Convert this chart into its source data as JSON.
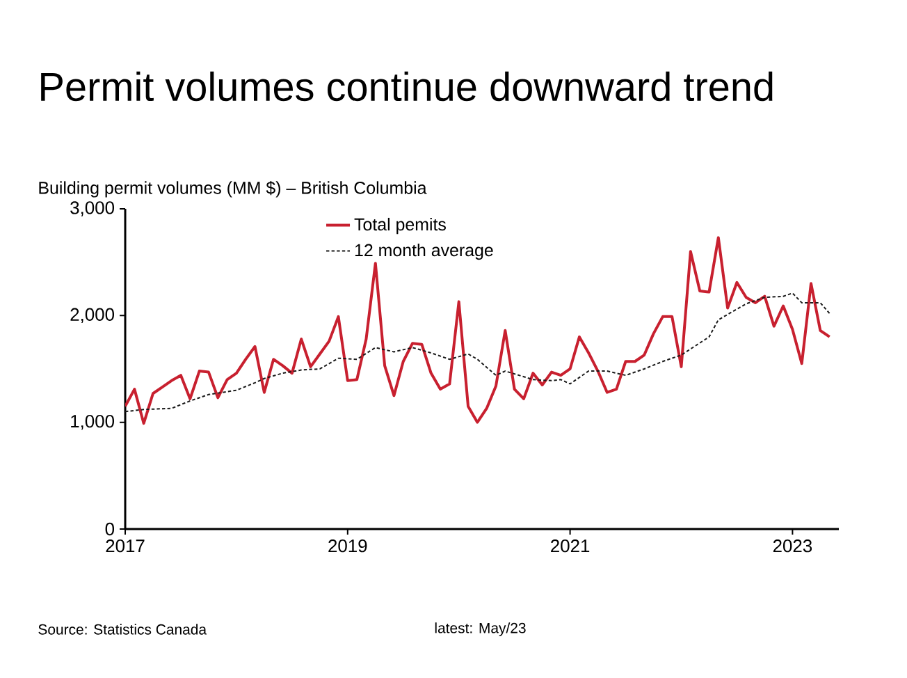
{
  "chart_data": {
    "type": "line",
    "title": "Permit volumes continue downward trend",
    "ylabel": "Building permit volumes (MM $) – British Columbia",
    "annotations": [
      "Source: Statistics Canada",
      "latest: May/23"
    ],
    "x": [
      "2017-01",
      "2017-02",
      "2017-03",
      "2017-04",
      "2017-05",
      "2017-06",
      "2017-07",
      "2017-08",
      "2017-09",
      "2017-10",
      "2017-11",
      "2017-12",
      "2018-01",
      "2018-02",
      "2018-03",
      "2018-04",
      "2018-05",
      "2018-06",
      "2018-07",
      "2018-08",
      "2018-09",
      "2018-10",
      "2018-11",
      "2018-12",
      "2019-01",
      "2019-02",
      "2019-03",
      "2019-04",
      "2019-05",
      "2019-06",
      "2019-07",
      "2019-08",
      "2019-09",
      "2019-10",
      "2019-11",
      "2019-12",
      "2020-01",
      "2020-02",
      "2020-03",
      "2020-04",
      "2020-05",
      "2020-06",
      "2020-07",
      "2020-08",
      "2020-09",
      "2020-10",
      "2020-11",
      "2020-12",
      "2021-01",
      "2021-02",
      "2021-03",
      "2021-04",
      "2021-05",
      "2021-06",
      "2021-07",
      "2021-08",
      "2021-09",
      "2021-10",
      "2021-11",
      "2021-12",
      "2022-01",
      "2022-02",
      "2022-03",
      "2022-04",
      "2022-05",
      "2022-06",
      "2022-07",
      "2022-08",
      "2022-09",
      "2022-10",
      "2022-11",
      "2022-12",
      "2023-01",
      "2023-02",
      "2023-03",
      "2023-04",
      "2023-05"
    ],
    "series": [
      {
        "name": "Total pemits",
        "color": "#c8202f",
        "line_style": "solid",
        "values": [
          1150,
          1310,
          990,
          1270,
          1330,
          1390,
          1440,
          1220,
          1480,
          1470,
          1230,
          1400,
          1460,
          1590,
          1710,
          1280,
          1590,
          1530,
          1460,
          1780,
          1520,
          1640,
          1760,
          1990,
          1390,
          1400,
          1780,
          2490,
          1530,
          1250,
          1570,
          1740,
          1730,
          1460,
          1310,
          1360,
          2130,
          1150,
          1000,
          1130,
          1340,
          1860,
          1310,
          1220,
          1460,
          1350,
          1470,
          1440,
          1500,
          1800,
          1650,
          1480,
          1280,
          1310,
          1570,
          1570,
          1630,
          1830,
          1990,
          1990,
          1520,
          2600,
          2230,
          2220,
          2730,
          2070,
          2310,
          2170,
          2120,
          2180,
          1900,
          2090,
          1870,
          1550,
          2300,
          1860,
          1800
        ]
      },
      {
        "name": "12 month average",
        "color": "#1a1a1a",
        "line_style": "dashed",
        "x": [
          "2017-01",
          "2017-03",
          "2017-06",
          "2017-08",
          "2017-10",
          "2018-01",
          "2018-03",
          "2018-04",
          "2018-06",
          "2018-08",
          "2018-10",
          "2018-12",
          "2019-02",
          "2019-04",
          "2019-06",
          "2019-08",
          "2019-10",
          "2019-12",
          "2020-02",
          "2020-03",
          "2020-05",
          "2020-06",
          "2020-09",
          "2020-11",
          "2020-12",
          "2021-01",
          "2021-03",
          "2021-05",
          "2021-07",
          "2021-09",
          "2021-11",
          "2022-01",
          "2022-04",
          "2022-05",
          "2022-08",
          "2022-10",
          "2022-12",
          "2023-01",
          "2023-02",
          "2023-04",
          "2023-05"
        ],
        "values": [
          1100,
          1120,
          1130,
          1200,
          1260,
          1300,
          1370,
          1410,
          1460,
          1490,
          1500,
          1600,
          1590,
          1700,
          1660,
          1700,
          1650,
          1590,
          1640,
          1590,
          1440,
          1480,
          1400,
          1390,
          1400,
          1360,
          1480,
          1480,
          1440,
          1500,
          1570,
          1630,
          1800,
          1960,
          2110,
          2170,
          2180,
          2210,
          2120,
          2120,
          2020
        ]
      }
    ],
    "xlim": [
      "2017-01",
      "2023-06"
    ],
    "xticks": [
      "2017",
      "2019",
      "2021",
      "2023"
    ],
    "ylim": [
      0,
      3000
    ],
    "yticks": [
      0,
      {
        "value": 1000,
        "label": "1,000"
      },
      {
        "value": 2000,
        "label": "2,000"
      },
      {
        "value": 3000,
        "label": "3,000"
      }
    ],
    "grid": false,
    "legend": "top",
    "marker": "none"
  }
}
